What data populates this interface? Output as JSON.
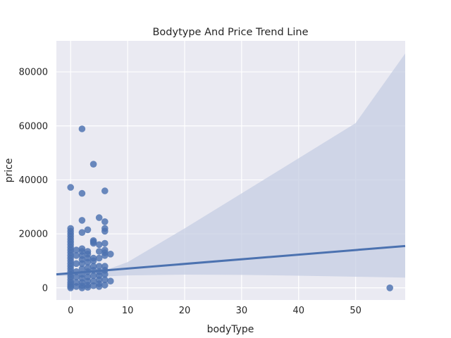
{
  "chart_data": {
    "type": "scatter",
    "title": "Bodytype And Price Trend Line",
    "xlabel": "bodyType",
    "ylabel": "price",
    "xlim": [
      -2.5,
      58.7
    ],
    "ylim": [
      -4500,
      91500
    ],
    "xticks": [
      0,
      10,
      20,
      30,
      40,
      50
    ],
    "yticks": [
      0,
      20000,
      40000,
      60000,
      80000
    ],
    "xtick_labels": [
      "0",
      "10",
      "20",
      "30",
      "40",
      "50"
    ],
    "ytick_labels": [
      "0",
      "20000",
      "40000",
      "60000",
      "80000"
    ],
    "grid": true,
    "colors": {
      "background": "#eaeaf2",
      "grid": "#ffffff",
      "points": "#4c72b0",
      "line": "#4c72b0",
      "band": "#c5cde3"
    },
    "trend_line": {
      "x": [
        -2.5,
        58.7
      ],
      "y": [
        5000,
        15500
      ]
    },
    "confidence_band": {
      "x": [
        -2.5,
        0,
        1,
        2,
        3,
        4,
        5,
        6,
        7,
        10,
        20,
        30,
        40,
        50,
        58.7
      ],
      "upper": [
        5500,
        5350,
        5450,
        5600,
        5750,
        6000,
        6300,
        6700,
        7200,
        9500,
        22000,
        35000,
        48000,
        61000,
        86800
      ],
      "lower": [
        4500,
        4300,
        4200,
        4150,
        4100,
        4050,
        4100,
        4200,
        4300,
        4600,
        4900,
        4800,
        4500,
        4100,
        3800
      ]
    },
    "points": [
      [
        0,
        37200
      ],
      [
        0,
        22000
      ],
      [
        0,
        21000
      ],
      [
        0,
        20000
      ],
      [
        0,
        19000
      ],
      [
        0,
        18000
      ],
      [
        0,
        17000
      ],
      [
        0,
        16000
      ],
      [
        0,
        15000
      ],
      [
        0,
        14000
      ],
      [
        0,
        13000
      ],
      [
        0,
        12000
      ],
      [
        0,
        11000
      ],
      [
        0,
        10000
      ],
      [
        0,
        9000
      ],
      [
        0,
        8000
      ],
      [
        0,
        7000
      ],
      [
        0,
        6000
      ],
      [
        0,
        5000
      ],
      [
        0,
        4000
      ],
      [
        0,
        3000
      ],
      [
        0,
        2000
      ],
      [
        0,
        1200
      ],
      [
        0,
        500
      ],
      [
        0,
        0
      ],
      [
        1,
        14000
      ],
      [
        1,
        12000
      ],
      [
        1,
        9000
      ],
      [
        1,
        6000
      ],
      [
        1,
        4000
      ],
      [
        1,
        2000
      ],
      [
        1,
        500
      ],
      [
        2,
        58900
      ],
      [
        2,
        35000
      ],
      [
        2,
        25000
      ],
      [
        2,
        20500
      ],
      [
        2,
        14500
      ],
      [
        2,
        13500
      ],
      [
        2,
        12000
      ],
      [
        2,
        10500
      ],
      [
        2,
        9000
      ],
      [
        2,
        7000
      ],
      [
        2,
        5000
      ],
      [
        2,
        3500
      ],
      [
        2,
        2000
      ],
      [
        2,
        800
      ],
      [
        2,
        0
      ],
      [
        3,
        21500
      ],
      [
        3,
        13500
      ],
      [
        3,
        12500
      ],
      [
        3,
        11000
      ],
      [
        3,
        9500
      ],
      [
        3,
        7500
      ],
      [
        3,
        6000
      ],
      [
        3,
        4000
      ],
      [
        3,
        2500
      ],
      [
        3,
        1000
      ],
      [
        3,
        200
      ],
      [
        4,
        45800
      ],
      [
        4,
        17500
      ],
      [
        4,
        17000
      ],
      [
        4,
        16500
      ],
      [
        4,
        11000
      ],
      [
        4,
        10000
      ],
      [
        4,
        8000
      ],
      [
        4,
        6500
      ],
      [
        4,
        4500
      ],
      [
        4,
        2500
      ],
      [
        4,
        800
      ],
      [
        5,
        26000
      ],
      [
        5,
        16000
      ],
      [
        5,
        13500
      ],
      [
        5,
        11000
      ],
      [
        5,
        8000
      ],
      [
        5,
        6000
      ],
      [
        5,
        4500
      ],
      [
        5,
        3000
      ],
      [
        5,
        1500
      ],
      [
        5,
        500
      ],
      [
        6,
        35900
      ],
      [
        6,
        24500
      ],
      [
        6,
        22000
      ],
      [
        6,
        21000
      ],
      [
        6,
        16500
      ],
      [
        6,
        14000
      ],
      [
        6,
        13000
      ],
      [
        6,
        12000
      ],
      [
        6,
        8000
      ],
      [
        6,
        6500
      ],
      [
        6,
        5000
      ],
      [
        6,
        3000
      ],
      [
        6,
        1000
      ],
      [
        7,
        12500
      ],
      [
        7,
        2500
      ],
      [
        56,
        0
      ]
    ]
  }
}
